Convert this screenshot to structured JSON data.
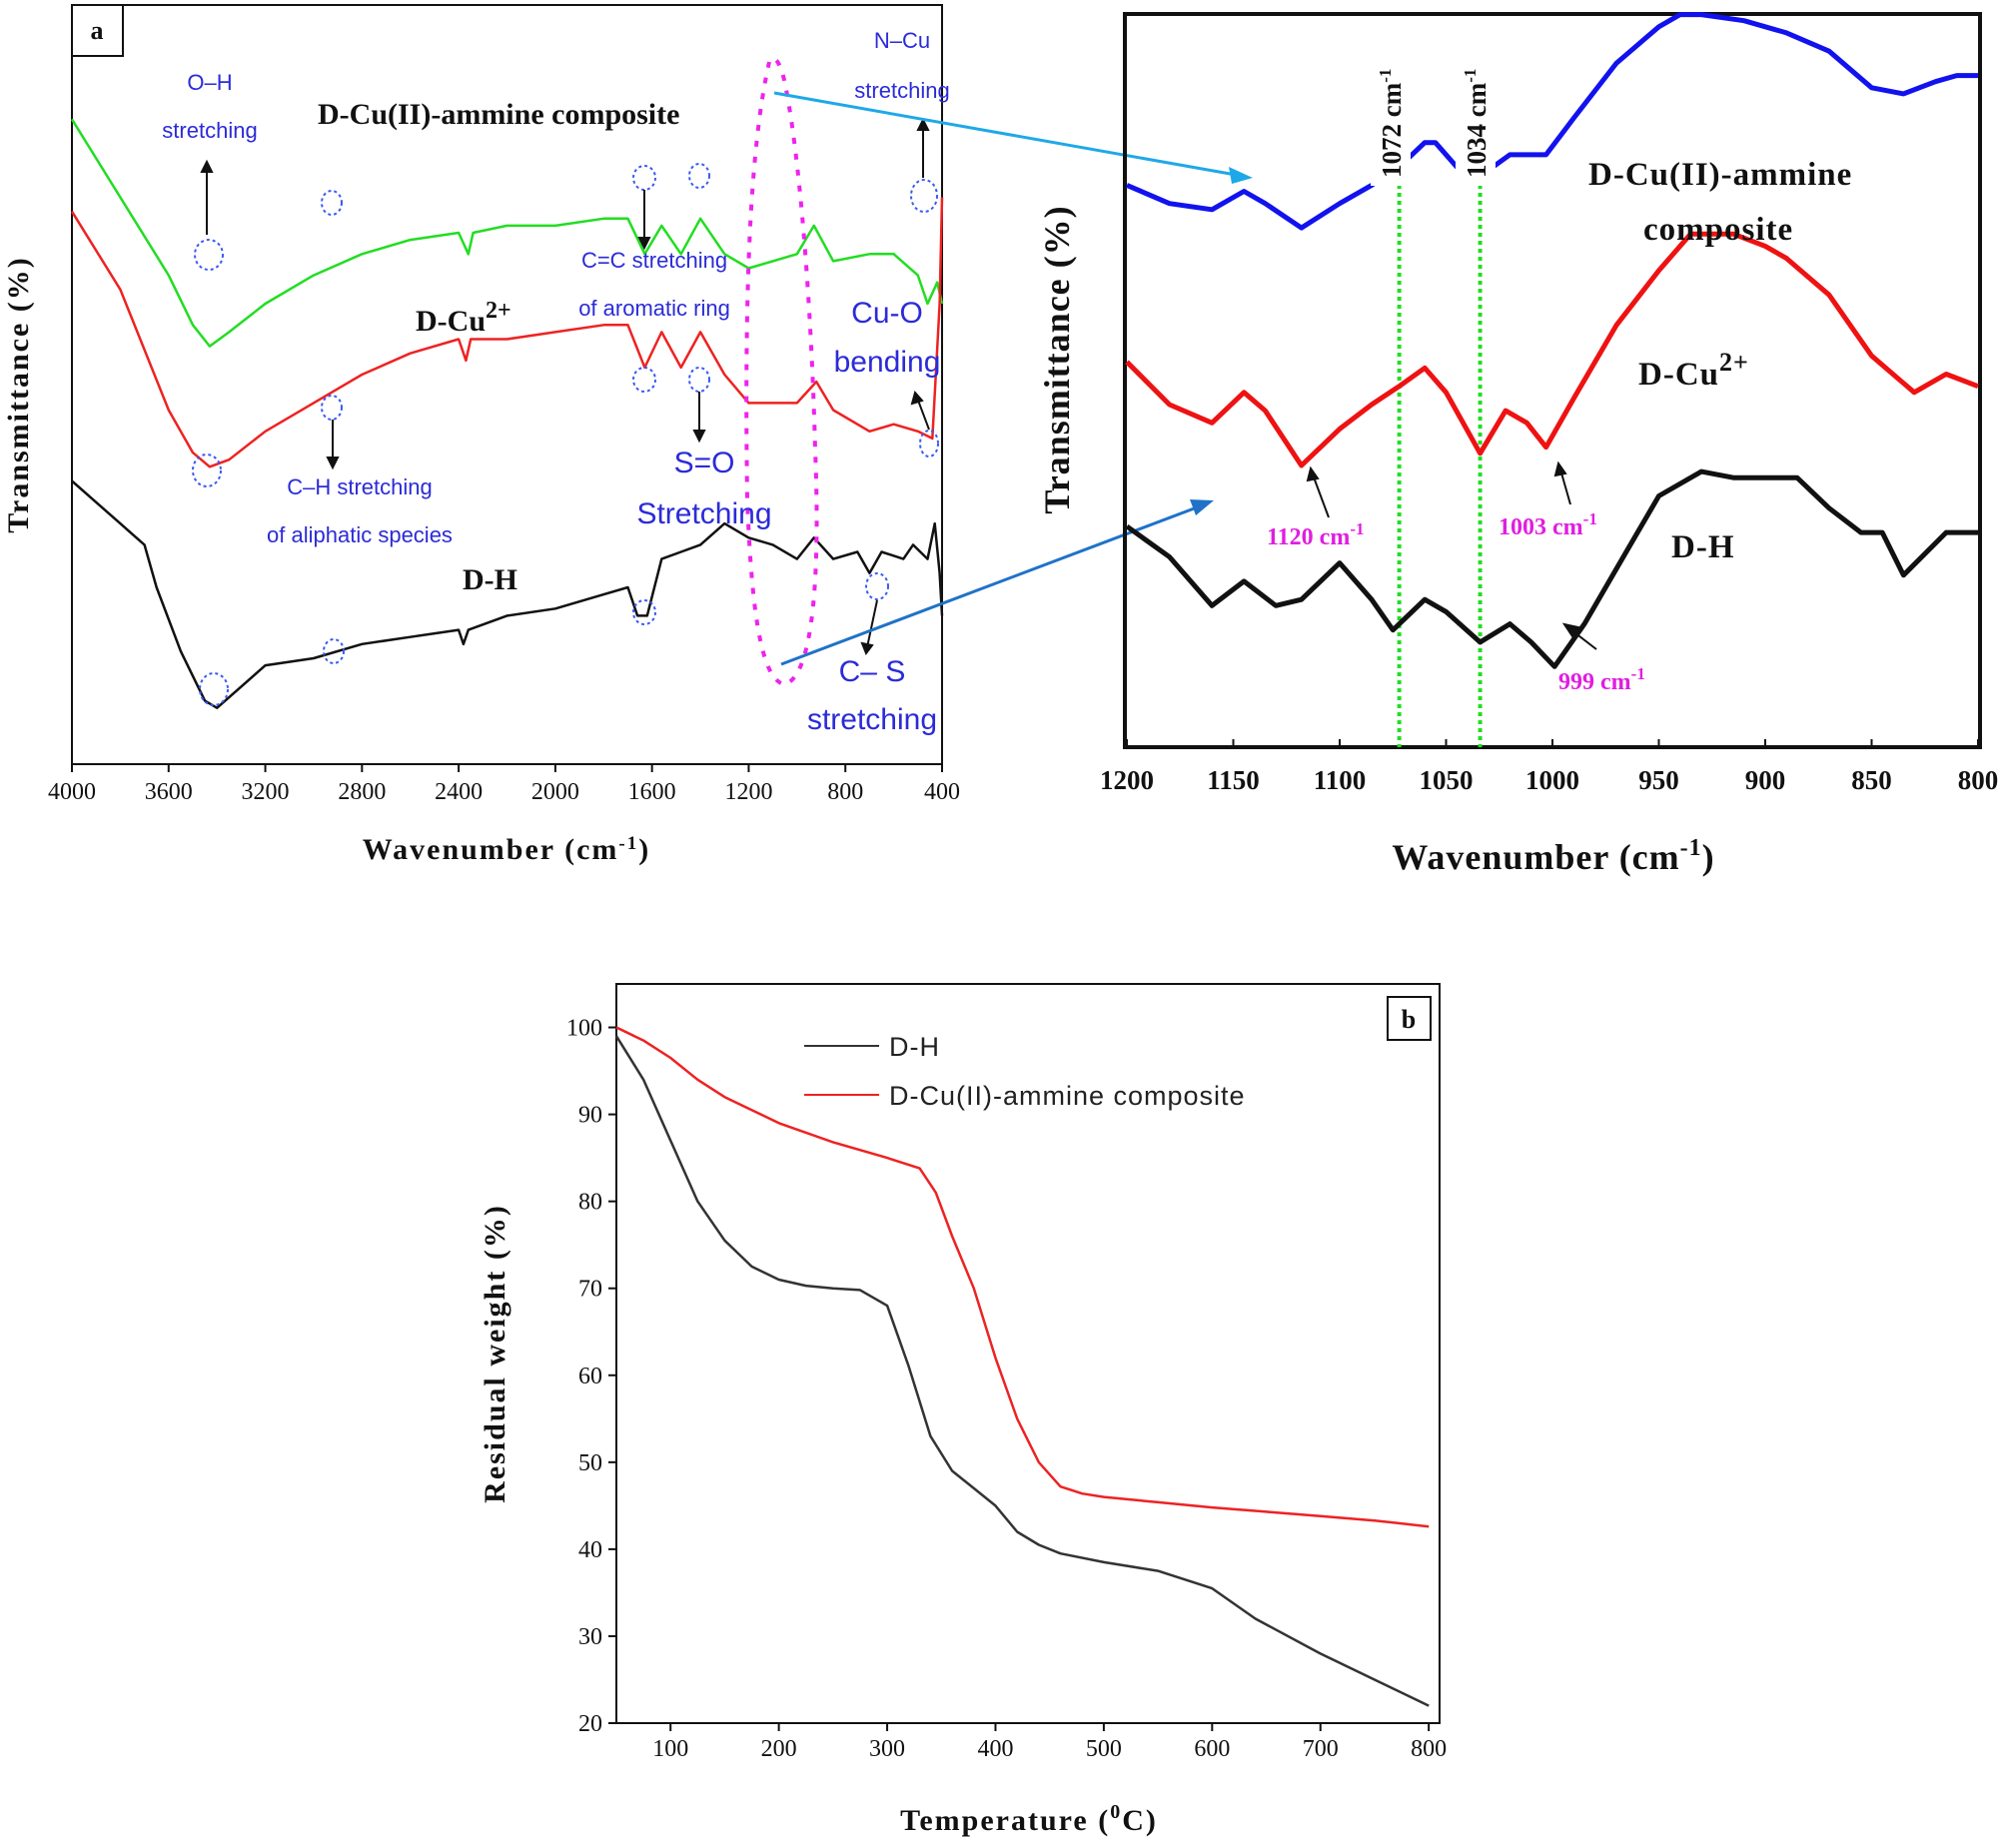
{
  "chart_data": [
    {
      "id": "panel_a",
      "type": "line",
      "panel_label": "a",
      "xlabel": "Wavenumber (cm",
      "xlabel_sup": "-1",
      "xlabel_tail": ")",
      "ylabel": "Transmittance (%)",
      "xlim": [
        4000,
        400
      ],
      "xticks": [
        4000,
        3600,
        3200,
        2800,
        2400,
        2000,
        1600,
        1200,
        800,
        400
      ],
      "colors": {
        "green": "#22dd22",
        "red": "#ee2222",
        "black": "#111111",
        "blue_ann": "#2b2bd8",
        "magenta": "#ee22ee"
      },
      "series": [
        {
          "name": "D-Cu(II)-ammine composite",
          "color": "#22dd22",
          "x": [
            4000,
            3800,
            3600,
            3500,
            3430,
            3350,
            3200,
            3000,
            2800,
            2600,
            2400,
            2360,
            2340,
            2200,
            2000,
            1800,
            1700,
            1630,
            1560,
            1480,
            1400,
            1300,
            1200,
            1100,
            1000,
            930,
            850,
            700,
            600,
            500,
            460,
            420,
            400
          ],
          "y": [
            86,
            75,
            64,
            57,
            54,
            56,
            60,
            64,
            67,
            69,
            70,
            67,
            70,
            71,
            71,
            72,
            72,
            67,
            71,
            67,
            72,
            67,
            65,
            66,
            67,
            71,
            66,
            67,
            67,
            64,
            60,
            63,
            60
          ]
        },
        {
          "name": "D-Cu2+",
          "color": "#ee2222",
          "x": [
            4000,
            3800,
            3600,
            3500,
            3430,
            3350,
            3200,
            3000,
            2800,
            2600,
            2400,
            2370,
            2350,
            2200,
            2000,
            1800,
            1700,
            1630,
            1560,
            1480,
            1400,
            1300,
            1200,
            1100,
            1000,
            920,
            850,
            700,
            600,
            500,
            440,
            410,
            400
          ],
          "y": [
            73,
            62,
            45,
            39,
            37,
            38,
            42,
            46,
            50,
            53,
            55,
            52,
            55,
            55,
            56,
            57,
            57,
            51,
            56,
            51,
            56,
            50,
            46,
            46,
            46,
            49,
            45,
            42,
            43,
            42,
            41,
            60,
            75
          ]
        },
        {
          "name": "D-H",
          "color": "#111111",
          "x": [
            4000,
            3900,
            3800,
            3700,
            3650,
            3550,
            3450,
            3400,
            3300,
            3200,
            3000,
            2800,
            2600,
            2400,
            2380,
            2360,
            2200,
            2000,
            1800,
            1700,
            1660,
            1620,
            1560,
            1480,
            1400,
            1300,
            1200,
            1100,
            1000,
            930,
            850,
            750,
            700,
            650,
            560,
            520,
            460,
            430,
            410,
            400
          ],
          "y": [
            35,
            32,
            29,
            26,
            20,
            11,
            4,
            3,
            6,
            9,
            10,
            12,
            13,
            14,
            12,
            14,
            16,
            17,
            19,
            20,
            16,
            16,
            24,
            25,
            26,
            29,
            27,
            26,
            24,
            27,
            24,
            25,
            22,
            25,
            24,
            26,
            24,
            29,
            22,
            16
          ]
        }
      ],
      "series_labels": [
        "D-Cu(II)-ammine composite",
        "D-Cu",
        "D-H"
      ],
      "series_label_sup": "2+",
      "annotations": {
        "oh_1": "O–H",
        "oh_2": "stretching",
        "cc_1": "C=C stretching",
        "cc_2": "of aromatic ring",
        "ch_1": "C–H stretching",
        "ch_2": "of aliphatic species",
        "so_1": "S=O",
        "so_2": "Stretching",
        "nc_1": "N–Cu",
        "nc_2": "stretching",
        "cuo_1": "Cu-O",
        "cuo_2": "bending",
        "cs_1": "C– S",
        "cs_2": "stretching"
      }
    },
    {
      "id": "panel_a_zoom",
      "type": "line",
      "xlabel": "Wavenumber (cm",
      "xlabel_sup": "-1",
      "xlabel_tail": ")",
      "ylabel": "Transmittance (%)",
      "xlim": [
        1200,
        800
      ],
      "xticks": [
        1200,
        1150,
        1100,
        1050,
        1000,
        950,
        900,
        850,
        800
      ],
      "vlines": [
        1072,
        1034
      ],
      "vline_labels": [
        "1072 cm",
        "1034 cm"
      ],
      "vline_sup": "-1",
      "series": [
        {
          "name": "D-Cu(II)-ammine composite",
          "color": "#1212ee",
          "x": [
            1200,
            1180,
            1160,
            1145,
            1135,
            1118,
            1100,
            1085,
            1072,
            1060,
            1055,
            1045,
            1034,
            1028,
            1020,
            1010,
            1003,
            990,
            970,
            950,
            940,
            930,
            910,
            890,
            870,
            850,
            835,
            820,
            810,
            800
          ],
          "y": [
            86,
            83,
            82,
            85,
            83,
            79,
            83,
            86,
            89,
            93,
            93,
            89,
            87,
            89,
            91,
            91,
            91,
            97,
            106,
            112,
            114,
            114,
            113,
            111,
            108,
            102,
            101,
            103,
            104,
            104
          ]
        },
        {
          "name": "D-Cu2+",
          "color": "#ee1212",
          "x": [
            1200,
            1180,
            1160,
            1145,
            1135,
            1118,
            1100,
            1085,
            1072,
            1060,
            1050,
            1034,
            1022,
            1012,
            1003,
            990,
            970,
            950,
            935,
            915,
            900,
            890,
            870,
            850,
            830,
            815,
            800
          ],
          "y": [
            57,
            50,
            47,
            52,
            49,
            40,
            46,
            50,
            53,
            56,
            52,
            42,
            49,
            47,
            43,
            51,
            63,
            72,
            78,
            78,
            76,
            74,
            68,
            58,
            52,
            55,
            53
          ]
        },
        {
          "name": "D-H",
          "color": "#111111",
          "x": [
            1200,
            1180,
            1160,
            1145,
            1130,
            1118,
            1100,
            1085,
            1075,
            1060,
            1050,
            1034,
            1020,
            1010,
            999,
            985,
            965,
            950,
            930,
            915,
            900,
            885,
            870,
            855,
            845,
            835,
            815,
            800
          ],
          "y": [
            30,
            25,
            17,
            21,
            17,
            18,
            24,
            18,
            13,
            18,
            16,
            11,
            14,
            11,
            7,
            14,
            26,
            35,
            39,
            38,
            38,
            38,
            33,
            29,
            29,
            22,
            29,
            29
          ]
        }
      ],
      "series_labels": [
        "D-Cu(II)-ammine",
        "composite",
        "D-Cu",
        "D-H"
      ],
      "series_label_sup": "2+",
      "peak_labels": [
        "1120 cm",
        "1003 cm",
        "999 cm"
      ],
      "peak_label_sup": "-1"
    },
    {
      "id": "panel_b",
      "type": "line",
      "panel_label": "b",
      "xlabel": "Temperature (",
      "xlabel_sup": "0",
      "xlabel_tail": "C)",
      "ylabel": "Residual weight (%)",
      "xlim": [
        50,
        810
      ],
      "ylim": [
        20,
        105
      ],
      "xticks": [
        100,
        200,
        300,
        400,
        500,
        600,
        700,
        800
      ],
      "yticks": [
        20,
        30,
        40,
        50,
        60,
        70,
        80,
        90,
        100
      ],
      "legend_position": "top-left",
      "series": [
        {
          "name": "D-H",
          "color": "#333333",
          "x": [
            50,
            75,
            100,
            125,
            150,
            175,
            200,
            225,
            250,
            275,
            300,
            320,
            340,
            360,
            380,
            400,
            420,
            440,
            460,
            500,
            550,
            600,
            640,
            700,
            750,
            800
          ],
          "y": [
            99,
            94,
            87,
            80,
            75.5,
            72.5,
            71,
            70.3,
            70,
            69.8,
            68,
            61,
            53,
            49,
            47,
            45,
            42,
            40.5,
            39.5,
            38.5,
            37.5,
            35.5,
            32,
            28,
            25,
            22
          ]
        },
        {
          "name": "D-Cu(II)-ammine composite",
          "color": "#ee2222",
          "x": [
            50,
            75,
            100,
            125,
            150,
            175,
            200,
            250,
            300,
            330,
            345,
            360,
            380,
            400,
            420,
            440,
            460,
            480,
            500,
            550,
            600,
            650,
            700,
            750,
            800
          ],
          "y": [
            100,
            98.5,
            96.5,
            94,
            92,
            90.5,
            89,
            86.8,
            85,
            83.8,
            81,
            76,
            70,
            62,
            55,
            50,
            47.2,
            46.4,
            46,
            45.4,
            44.8,
            44.3,
            43.8,
            43.3,
            42.6
          ]
        }
      ],
      "legend": [
        "D-H",
        "D-Cu(II)-ammine composite"
      ]
    }
  ]
}
